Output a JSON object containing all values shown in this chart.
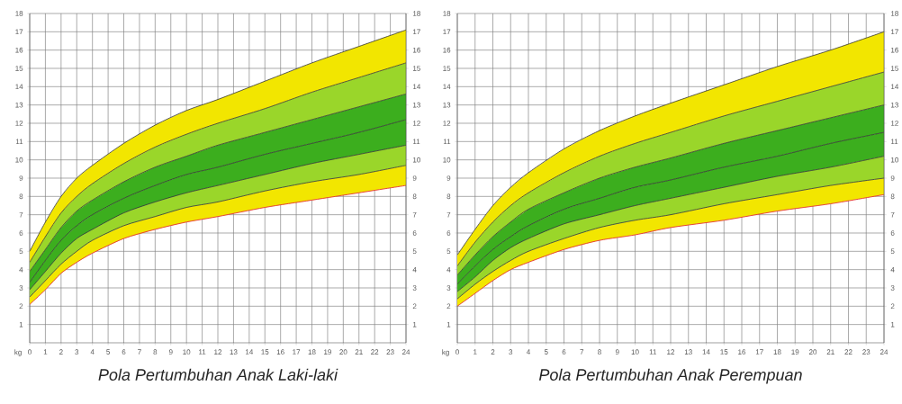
{
  "chart_data": [
    {
      "type": "area",
      "title": "Pola Pertumbuhan Anak Laki-laki",
      "ylabel": "kg",
      "x": [
        0,
        1,
        2,
        3,
        4,
        6,
        8,
        10,
        12,
        15,
        18,
        21,
        24
      ],
      "xlim": [
        0,
        24
      ],
      "ylim": [
        0,
        18
      ],
      "y2lim": [
        0,
        18
      ],
      "xticks": [
        0,
        1,
        2,
        3,
        4,
        5,
        6,
        7,
        8,
        9,
        10,
        11,
        12,
        13,
        14,
        15,
        16,
        17,
        18,
        19,
        20,
        21,
        22,
        23,
        24
      ],
      "yticks": [
        1,
        2,
        3,
        4,
        5,
        6,
        7,
        8,
        9,
        10,
        11,
        12,
        13,
        14,
        15,
        16,
        17,
        18
      ],
      "y2ticks": [
        1,
        2,
        3,
        4,
        5,
        6,
        7,
        8,
        9,
        10,
        11,
        12,
        13,
        14,
        15,
        16,
        17,
        18
      ],
      "grid": true,
      "marker": "none",
      "line_style": "solid",
      "series": [
        {
          "type": "line",
          "color": "#e53935",
          "values": [
            2.1,
            2.9,
            3.8,
            4.4,
            4.9,
            5.7,
            6.2,
            6.6,
            6.9,
            7.4,
            7.8,
            8.2,
            8.6
          ]
        },
        {
          "color": "#f2e600",
          "values": [
            2.5,
            3.4,
            4.3,
            5.0,
            5.6,
            6.4,
            6.9,
            7.4,
            7.7,
            8.3,
            8.8,
            9.2,
            9.7
          ]
        },
        {
          "color": "#9ad62a",
          "values": [
            2.9,
            3.9,
            4.9,
            5.7,
            6.2,
            7.1,
            7.7,
            8.2,
            8.6,
            9.2,
            9.8,
            10.3,
            10.8
          ]
        },
        {
          "color": "#3cae1e",
          "values": [
            3.3,
            4.5,
            5.6,
            6.4,
            7.0,
            7.9,
            8.6,
            9.2,
            9.6,
            10.3,
            10.9,
            11.5,
            12.2
          ]
        },
        {
          "color": "#3cae1e",
          "values": [
            3.9,
            5.1,
            6.3,
            7.2,
            7.8,
            8.8,
            9.6,
            10.2,
            10.8,
            11.5,
            12.2,
            12.9,
            13.6
          ]
        },
        {
          "color": "#9ad62a",
          "values": [
            4.4,
            5.8,
            7.1,
            8.0,
            8.7,
            9.8,
            10.7,
            11.4,
            12.0,
            12.8,
            13.7,
            14.5,
            15.3
          ]
        },
        {
          "color": "#f2e600",
          "values": [
            5.0,
            6.6,
            8.0,
            9.0,
            9.7,
            10.9,
            11.9,
            12.7,
            13.3,
            14.3,
            15.3,
            16.2,
            17.1
          ]
        }
      ]
    },
    {
      "type": "area",
      "title": "Pola Pertumbuhan Anak Perempuan",
      "ylabel": "kg",
      "x": [
        0,
        1,
        2,
        3,
        4,
        6,
        8,
        10,
        12,
        15,
        18,
        21,
        24
      ],
      "xlim": [
        0,
        24
      ],
      "ylim": [
        0,
        18
      ],
      "y2lim": [
        0,
        18
      ],
      "xticks": [
        0,
        1,
        2,
        3,
        4,
        5,
        6,
        7,
        8,
        9,
        10,
        11,
        12,
        13,
        14,
        15,
        16,
        17,
        18,
        19,
        20,
        21,
        22,
        23,
        24
      ],
      "yticks": [
        1,
        2,
        3,
        4,
        5,
        6,
        7,
        8,
        9,
        10,
        11,
        12,
        13,
        14,
        15,
        16,
        17,
        18
      ],
      "y2ticks": [
        1,
        2,
        3,
        4,
        5,
        6,
        7,
        8,
        9,
        10,
        11,
        12,
        13,
        14,
        15,
        16,
        17,
        18
      ],
      "grid": true,
      "marker": "none",
      "line_style": "solid",
      "series": [
        {
          "type": "line",
          "color": "#e53935",
          "values": [
            2.0,
            2.7,
            3.4,
            4.0,
            4.4,
            5.1,
            5.6,
            5.9,
            6.3,
            6.7,
            7.2,
            7.6,
            8.1
          ]
        },
        {
          "color": "#f2e600",
          "values": [
            2.4,
            3.2,
            3.9,
            4.5,
            5.0,
            5.7,
            6.3,
            6.7,
            7.0,
            7.6,
            8.1,
            8.6,
            9.0
          ]
        },
        {
          "color": "#9ad62a",
          "values": [
            2.8,
            3.6,
            4.5,
            5.2,
            5.7,
            6.5,
            7.0,
            7.5,
            7.9,
            8.5,
            9.1,
            9.6,
            10.2
          ]
        },
        {
          "color": "#3cae1e",
          "values": [
            3.2,
            4.2,
            5.1,
            5.8,
            6.4,
            7.3,
            7.9,
            8.5,
            8.9,
            9.6,
            10.2,
            10.9,
            11.5
          ]
        },
        {
          "color": "#3cae1e",
          "values": [
            3.7,
            4.8,
            5.8,
            6.6,
            7.3,
            8.2,
            9.0,
            9.6,
            10.1,
            10.9,
            11.6,
            12.3,
            13.0
          ]
        },
        {
          "color": "#9ad62a",
          "values": [
            4.2,
            5.5,
            6.6,
            7.5,
            8.2,
            9.3,
            10.2,
            10.9,
            11.5,
            12.4,
            13.2,
            14.0,
            14.8
          ]
        },
        {
          "color": "#f2e600",
          "values": [
            4.8,
            6.2,
            7.5,
            8.5,
            9.3,
            10.6,
            11.6,
            12.4,
            13.1,
            14.1,
            15.1,
            16.0,
            17.0
          ]
        }
      ]
    }
  ]
}
